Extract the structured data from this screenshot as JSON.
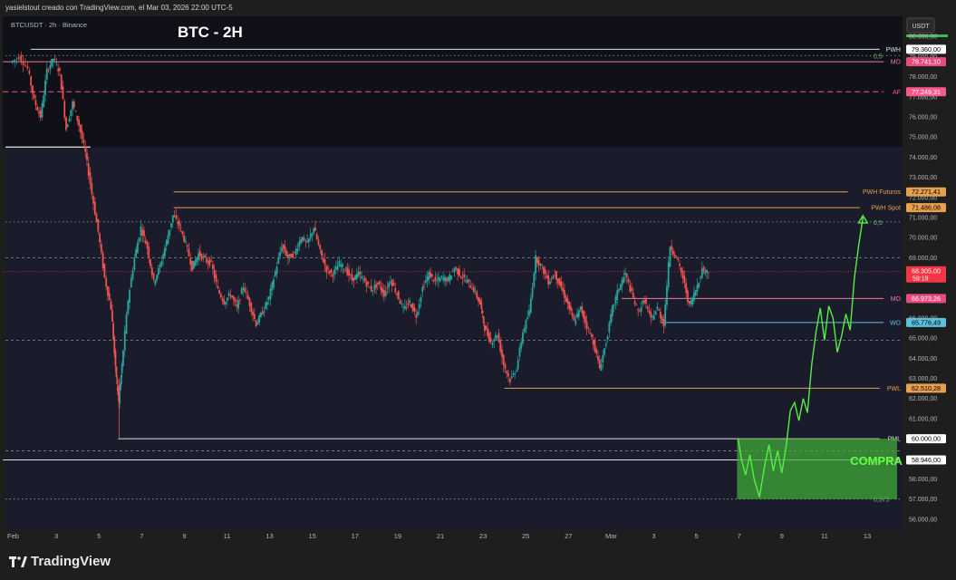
{
  "header": {
    "creator_text": "yasielstout creado con TradingView.com, el Mar 03, 2026 22:00 UTC-5"
  },
  "footer": {
    "brand": "TradingView"
  },
  "chart_data": {
    "type": "candlestick",
    "symbol_text": "BTCUSDT · 2h · Binance",
    "title": "BTC - 2H",
    "currency_button": "USDT",
    "ylim": [
      55500,
      81000
    ],
    "y_ticks": [
      56000,
      57000,
      58000,
      59000,
      60000,
      61000,
      62000,
      63000,
      64000,
      65000,
      66000,
      67000,
      68000,
      69000,
      70000,
      71000,
      72000,
      73000,
      74000,
      75000,
      76000,
      77000,
      78000,
      79000,
      80000
    ],
    "y_tick_labels": [
      "56.000,00",
      "57.000,00",
      "58.000,00",
      "59.000,00",
      "60.000,00",
      "61.000,00",
      "62.000,00",
      "63.000,00",
      "64.000,00",
      "65.000,00",
      "66.000,00",
      "67.000,00",
      "68.000,00",
      "69.000,00",
      "70.000,00",
      "71.000,00",
      "72.000,00",
      "73.000,00",
      "74.000,00",
      "75.000,00",
      "76.000,00",
      "77.000,00",
      "78.000,00",
      "79.000,00",
      "80.000,00"
    ],
    "x_ticks": [
      {
        "day": 1,
        "label": "Feb"
      },
      {
        "day": 3,
        "label": "3"
      },
      {
        "day": 5,
        "label": "5"
      },
      {
        "day": 7,
        "label": "7"
      },
      {
        "day": 9,
        "label": "9"
      },
      {
        "day": 11,
        "label": "11"
      },
      {
        "day": 13,
        "label": "13"
      },
      {
        "day": 15,
        "label": "15"
      },
      {
        "day": 17,
        "label": "17"
      },
      {
        "day": 19,
        "label": "19"
      },
      {
        "day": 21,
        "label": "21"
      },
      {
        "day": 23,
        "label": "23"
      },
      {
        "day": 25,
        "label": "25"
      },
      {
        "day": 27,
        "label": "27"
      },
      {
        "day": 29,
        "label": "Mar"
      },
      {
        "day": 31,
        "label": "3"
      },
      {
        "day": 33,
        "label": "5"
      },
      {
        "day": 35,
        "label": "7"
      },
      {
        "day": 37,
        "label": "9"
      },
      {
        "day": 39,
        "label": "11"
      },
      {
        "day": 41,
        "label": "13"
      }
    ],
    "price_path": [
      [
        0.9,
        78700
      ],
      [
        1.3,
        79000
      ],
      [
        1.7,
        78400
      ],
      [
        2.0,
        76800
      ],
      [
        2.3,
        76000
      ],
      [
        2.6,
        78300
      ],
      [
        2.9,
        78900
      ],
      [
        3.2,
        78200
      ],
      [
        3.5,
        75400
      ],
      [
        3.8,
        76700
      ],
      [
        4.1,
        75600
      ],
      [
        4.4,
        74200
      ],
      [
        4.7,
        72200
      ],
      [
        5.0,
        70300
      ],
      [
        5.3,
        68000
      ],
      [
        5.6,
        66500
      ],
      [
        5.8,
        63500
      ],
      [
        5.95,
        61800
      ],
      [
        6.1,
        63600
      ],
      [
        6.4,
        66900
      ],
      [
        6.7,
        69000
      ],
      [
        7.0,
        70500
      ],
      [
        7.3,
        69500
      ],
      [
        7.6,
        67800
      ],
      [
        7.9,
        68600
      ],
      [
        8.2,
        69800
      ],
      [
        8.5,
        71100
      ],
      [
        8.8,
        70600
      ],
      [
        9.1,
        69700
      ],
      [
        9.4,
        68500
      ],
      [
        9.7,
        69200
      ],
      [
        10.0,
        68900
      ],
      [
        10.3,
        68700
      ],
      [
        10.6,
        67400
      ],
      [
        10.9,
        66800
      ],
      [
        11.2,
        67200
      ],
      [
        11.5,
        66500
      ],
      [
        11.8,
        67600
      ],
      [
        12.1,
        66700
      ],
      [
        12.4,
        65700
      ],
      [
        12.7,
        66300
      ],
      [
        13.0,
        67000
      ],
      [
        13.3,
        68300
      ],
      [
        13.6,
        69600
      ],
      [
        13.9,
        69000
      ],
      [
        14.2,
        69200
      ],
      [
        14.5,
        70000
      ],
      [
        14.8,
        69700
      ],
      [
        15.1,
        70500
      ],
      [
        15.4,
        69300
      ],
      [
        15.7,
        68400
      ],
      [
        16.0,
        68200
      ],
      [
        16.3,
        68700
      ],
      [
        16.6,
        68400
      ],
      [
        16.9,
        67900
      ],
      [
        17.2,
        68200
      ],
      [
        17.5,
        67800
      ],
      [
        17.8,
        67400
      ],
      [
        18.1,
        67700
      ],
      [
        18.4,
        67200
      ],
      [
        18.7,
        67900
      ],
      [
        19.0,
        67200
      ],
      [
        19.3,
        66400
      ],
      [
        19.6,
        66800
      ],
      [
        19.9,
        66100
      ],
      [
        20.2,
        67500
      ],
      [
        20.5,
        68200
      ],
      [
        20.8,
        67800
      ],
      [
        21.1,
        68000
      ],
      [
        21.4,
        67900
      ],
      [
        21.7,
        68500
      ],
      [
        22.0,
        68100
      ],
      [
        22.3,
        67800
      ],
      [
        22.6,
        67400
      ],
      [
        22.9,
        66700
      ],
      [
        23.1,
        65500
      ],
      [
        23.4,
        64800
      ],
      [
        23.7,
        65200
      ],
      [
        24.0,
        63700
      ],
      [
        24.3,
        62900
      ],
      [
        24.6,
        63500
      ],
      [
        24.9,
        65300
      ],
      [
        25.2,
        66300
      ],
      [
        25.5,
        69000
      ],
      [
        25.8,
        68500
      ],
      [
        26.1,
        67800
      ],
      [
        26.4,
        68200
      ],
      [
        26.7,
        67500
      ],
      [
        27.0,
        66700
      ],
      [
        27.3,
        65800
      ],
      [
        27.6,
        66500
      ],
      [
        27.9,
        65600
      ],
      [
        28.2,
        64800
      ],
      [
        28.5,
        63500
      ],
      [
        28.8,
        64800
      ],
      [
        29.1,
        66500
      ],
      [
        29.4,
        67500
      ],
      [
        29.7,
        68200
      ],
      [
        30.0,
        67200
      ],
      [
        30.3,
        66300
      ],
      [
        30.6,
        66900
      ],
      [
        30.9,
        65900
      ],
      [
        31.2,
        66500
      ],
      [
        31.5,
        65700
      ],
      [
        31.8,
        69600
      ],
      [
        32.1,
        69000
      ],
      [
        32.4,
        68000
      ],
      [
        32.7,
        66600
      ],
      [
        33.0,
        67400
      ],
      [
        33.3,
        68400
      ],
      [
        33.6,
        68300
      ]
    ],
    "projection_path": [
      [
        34.95,
        60000
      ],
      [
        35.1,
        59000
      ],
      [
        35.3,
        58200
      ],
      [
        35.5,
        59200
      ],
      [
        35.7,
        58000
      ],
      [
        35.95,
        57100
      ],
      [
        36.2,
        58700
      ],
      [
        36.4,
        59700
      ],
      [
        36.6,
        58400
      ],
      [
        36.8,
        59400
      ],
      [
        37.0,
        58300
      ],
      [
        37.2,
        59600
      ],
      [
        37.4,
        61400
      ],
      [
        37.6,
        61800
      ],
      [
        37.8,
        60900
      ],
      [
        38.0,
        62000
      ],
      [
        38.2,
        61300
      ],
      [
        38.4,
        63700
      ],
      [
        38.6,
        65300
      ],
      [
        38.8,
        66500
      ],
      [
        39.0,
        64900
      ],
      [
        39.2,
        66600
      ],
      [
        39.4,
        66000
      ],
      [
        39.6,
        64300
      ],
      [
        39.8,
        65100
      ],
      [
        40.0,
        66200
      ],
      [
        40.2,
        65400
      ],
      [
        40.4,
        68000
      ],
      [
        40.6,
        69600
      ],
      [
        40.8,
        71000
      ]
    ],
    "buy_zone": {
      "label": "COMPRAS",
      "day_start": 34.9,
      "day_end": 42.4,
      "price_low": 57000,
      "price_high": 60000,
      "color": "#3fa83a"
    },
    "levels": [
      {
        "label": "PWH",
        "value": 79360,
        "value_label": "79.360,00",
        "color": "#e0e0e0",
        "style": "solid",
        "day_start": 1.8
      },
      {
        "label": "MO",
        "value": 78741.1,
        "value_label": "78.741,10",
        "color": "#f07a9a",
        "style": "solid",
        "day_start": 0.5
      },
      {
        "label": "AF",
        "value": 77249.31,
        "value_label": "77.249,31",
        "color": "#f75a8a",
        "style": "dashed",
        "day_start": 0.5
      },
      {
        "label": "PWH Futuros",
        "value": 72271.41,
        "value_label": "72.271,41",
        "color": "#e6a050",
        "style": "solid",
        "day_start": 8.5
      },
      {
        "label": "PWH Spot",
        "value": 71486.08,
        "value_label": "71.486,08",
        "color": "#e6a050",
        "style": "solid",
        "day_start": 8.5
      },
      {
        "label": "",
        "value": 68305,
        "value_label": "68.305,00",
        "sub_label": "59:19",
        "color": "#f23645",
        "style": "current",
        "day_start": 0.5
      },
      {
        "label": "MO",
        "value": 66973.26,
        "value_label": "66.973,26",
        "color": "#f07a9a",
        "style": "solid",
        "day_start": 29.5
      },
      {
        "label": "WO",
        "value": 65776.49,
        "value_label": "65.776,49",
        "color": "#5bc0de",
        "style": "solid",
        "day_start": 31.3
      },
      {
        "label": "PWL",
        "value": 62510.28,
        "value_label": "62.510,28",
        "color": "#e6a050",
        "style": "solid",
        "day_start": 24.0
      },
      {
        "label": "PML",
        "value": 60000,
        "value_label": "60.000,00",
        "color": "#e0e0e0",
        "style": "solid",
        "day_start": 5.9
      },
      {
        "label": "PML",
        "value": 58946,
        "value_label": "58.946,00",
        "color": "#e0e0e0",
        "style": "solid",
        "day_start": 0.5
      }
    ],
    "fib_levels": [
      {
        "label": "0,5",
        "value": 79050,
        "color": "#7cb87c"
      },
      {
        "label": "0,5",
        "value": 70780,
        "color": "#7cb87c"
      },
      {
        "label": "0,375",
        "value": 57000,
        "color": "#7cb87c"
      }
    ],
    "gray_dashed_levels": [
      69000,
      64900,
      59400
    ],
    "dark_region": {
      "price_low": 74500,
      "price_high": 81000,
      "day_start": 0.5,
      "day_end": 42.4
    },
    "colors": {
      "up": "#26a69a",
      "down": "#ef5350",
      "projection": "#55ee44",
      "background": "#1b1c2b"
    }
  }
}
